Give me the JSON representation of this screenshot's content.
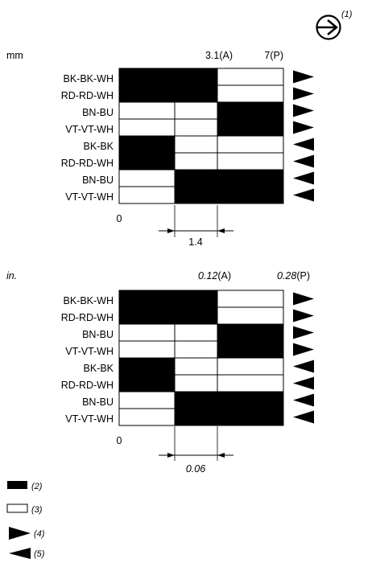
{
  "direction_symbol": {
    "icon": "arrow-right-in-circle-icon",
    "callout": "(1)"
  },
  "mm_section": {
    "unit": "mm",
    "position_a": "3.1(A)",
    "position_p": "7(P)",
    "zero": "0",
    "dimension": "1.4"
  },
  "in_section": {
    "unit": "in.",
    "position_a_value": "0.12",
    "position_a_suffix": "(A)",
    "position_p_value": "0.28",
    "position_p_suffix": "(P)",
    "zero": "0",
    "dimension": "0.06"
  },
  "wires": [
    "BK-BK-WH",
    "RD-RD-WH",
    "BN-BU",
    "VT-VT-WH",
    "BK-BK",
    "RD-RD-WH",
    "BN-BU",
    "VT-VT-WH"
  ],
  "contact_pattern": [
    [
      1,
      1,
      0,
      0
    ],
    [
      1,
      1,
      0,
      0
    ],
    [
      0,
      0,
      1,
      1
    ],
    [
      0,
      0,
      1,
      1
    ],
    [
      1,
      0,
      0,
      0
    ],
    [
      1,
      0,
      0,
      0
    ],
    [
      0,
      1,
      1,
      1
    ],
    [
      0,
      1,
      1,
      1
    ]
  ],
  "row_directions": [
    "right",
    "right",
    "right",
    "right",
    "left",
    "left",
    "left",
    "left"
  ],
  "legend": [
    {
      "icon": "filled-rectangle-icon",
      "label": "(2)"
    },
    {
      "icon": "open-rectangle-icon",
      "label": "(3)"
    },
    {
      "icon": "triangle-right-icon",
      "label": "(4)"
    },
    {
      "icon": "triangle-left-icon",
      "label": "(5)"
    }
  ],
  "colors": {
    "ink": "#000000",
    "paper": "#ffffff"
  }
}
